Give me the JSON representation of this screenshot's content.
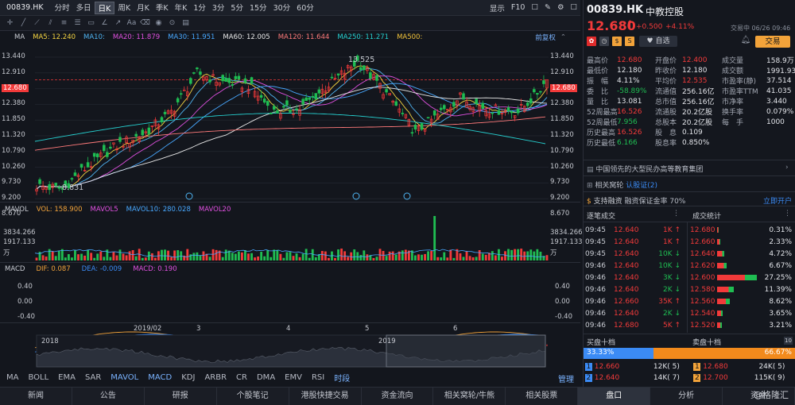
{
  "toolbar": {
    "symbol": "00839.HK",
    "periods": [
      "分时",
      "多日",
      "日K",
      "周K",
      "月K",
      "季K",
      "年K",
      "1分",
      "3分",
      "5分",
      "15分",
      "30分",
      "60分"
    ],
    "active_period": "日K",
    "display": "显示",
    "f10": "F10"
  },
  "ma_legend": {
    "ma": "MA",
    "items": [
      {
        "label": "MA5: 12.240",
        "color": "#f5d541"
      },
      {
        "label": "MA10:",
        "color": "#4fb4f2"
      },
      {
        "label": "MA20: 11.879",
        "color": "#e050e0"
      },
      {
        "label": "MA30: 11.951",
        "color": "#48a8ff"
      },
      {
        "label": "MA60: 12.005",
        "color": "#e8e8e8"
      },
      {
        "label": "MA120: 11.644",
        "color": "#ff7a7a"
      },
      {
        "label": "MA250: 11.271",
        "color": "#26d0d0"
      },
      {
        "label": "MA500:",
        "color": "#f0c23a"
      }
    ],
    "adjust": "前复权"
  },
  "price_axis": {
    "left": [
      "13.440",
      "12.910",
      "12.680",
      "12.380",
      "11.850",
      "11.320",
      "10.790",
      "10.260",
      "9.730",
      "9.200",
      "8.670"
    ],
    "right": [
      "13.440",
      "12.910",
      "12.680",
      "12.380",
      "11.850",
      "11.320",
      "10.790",
      "10.260",
      "9.730",
      "9.200",
      "8.670"
    ],
    "high_label": "13.525",
    "low_label": "8.831"
  },
  "volume": {
    "label": "MAVOL",
    "vol": "VOL: 158.900",
    "mavol5": "MAVOL5",
    "mavol10": "MAVOL10: 280.028",
    "mavol20": "MAVOL20",
    "axis": [
      "3834.266",
      "1917.133",
      "万"
    ],
    "axis_right": [
      "3834.266",
      "1917.133",
      "万"
    ]
  },
  "macd": {
    "label": "MACD",
    "dif": "DIF: 0.087",
    "dea": "DEA: -0.009",
    "macd": "MACD: 0.190",
    "axis": [
      "0.40",
      "0.00",
      "-0.40"
    ],
    "axis_right": [
      "0.40",
      "0.00",
      "-0.40"
    ]
  },
  "time_axis": [
    "2019/02",
    "3",
    "4",
    "5",
    "6"
  ],
  "overview_labels": [
    "2018",
    "2019"
  ],
  "indicators": [
    "MA",
    "BOLL",
    "EMA",
    "SAR",
    "MAVOL",
    "MACD",
    "KDJ",
    "ARBR",
    "CR",
    "DMA",
    "EMV",
    "RSI",
    "时段"
  ],
  "indicators_active": [
    "MAVOL",
    "MACD",
    "时段"
  ],
  "manage": "管理",
  "bottom_nav": [
    "新闻",
    "公告",
    "研报",
    "个股笔记",
    "港股快捷交易",
    "资金流向",
    "相关窝轮/牛熊",
    "相关股票",
    "盘口",
    "分析",
    "资金"
  ],
  "bottom_active": "盘口",
  "watermark": "@格隆汇",
  "quote": {
    "code": "00839.HK",
    "name": "中教控股",
    "price": "12.680",
    "arrow": "↑",
    "change": "+0.500",
    "pct": "+4.11%",
    "trade_time": "交易中 06/26 09:46",
    "watch": "自选",
    "trade": "交易",
    "stats": [
      [
        "最高价",
        "12.680",
        "开盘价",
        "12.400",
        "成交量",
        "158.9万"
      ],
      [
        "最低价",
        "12.180",
        "昨收价",
        "12.180",
        "成交额",
        "1991.93万"
      ],
      [
        "振　幅",
        "4.11%",
        "平均价",
        "12.535",
        "市盈率(静)",
        "37.514"
      ],
      [
        "委　比",
        "-58.89%",
        "流通值",
        "256.16亿",
        "市盈率TTM",
        "41.035"
      ],
      [
        "量　比",
        "13.081",
        "总市值",
        "256.16亿",
        "市净率",
        "3.440"
      ],
      [
        "52周最高",
        "16.526",
        "流通股",
        "20.2亿股",
        "换手率",
        "0.079%"
      ],
      [
        "52周最低",
        "7.956",
        "总股本",
        "20.2亿股",
        "每　手",
        "1000"
      ],
      [
        "历史最高",
        "16.526",
        "股　息",
        "0.109",
        "",
        ""
      ],
      [
        "历史最低",
        "6.166",
        "股息率",
        "0.850%",
        "",
        ""
      ]
    ],
    "desc": "中国领先的大型民办高等教育集团",
    "warrants": "相关窝轮",
    "certs": "认股证(2)",
    "margin": "支持融资",
    "margin_rate": "融资保证金率 70%",
    "open_account": "立即开户"
  },
  "ticks": {
    "title": "逐笔成交",
    "rows": [
      [
        "09:45",
        "12.640",
        "1K",
        "up"
      ],
      [
        "09:45",
        "12.640",
        "1K",
        "up"
      ],
      [
        "09:45",
        "12.640",
        "10K",
        "down"
      ],
      [
        "09:46",
        "12.640",
        "10K",
        "down"
      ],
      [
        "09:46",
        "12.640",
        "3K",
        "down"
      ],
      [
        "09:46",
        "12.640",
        "2K",
        "down"
      ],
      [
        "09:46",
        "12.660",
        "35K",
        "up"
      ],
      [
        "09:46",
        "12.640",
        "2K",
        "down"
      ],
      [
        "09:46",
        "12.680",
        "5K",
        "up"
      ]
    ]
  },
  "dist": {
    "title": "成交统计",
    "rows": [
      [
        "12.680",
        "0.31%",
        0.31
      ],
      [
        "12.660",
        "2.33%",
        2.33
      ],
      [
        "12.640",
        "4.72%",
        4.72
      ],
      [
        "12.620",
        "6.67%",
        6.67
      ],
      [
        "12.600",
        "27.25%",
        27.25
      ],
      [
        "12.580",
        "11.39%",
        11.39
      ],
      [
        "12.560",
        "8.62%",
        8.62
      ],
      [
        "12.540",
        "3.65%",
        3.65
      ],
      [
        "12.520",
        "3.21%",
        3.21
      ]
    ]
  },
  "book": {
    "bid_title": "买盘十档",
    "ask_title": "卖盘十档",
    "ten": "10",
    "bid_pct": "33.33%",
    "ask_pct": "66.67%",
    "bid_ratio": 0.3333,
    "bids": [
      [
        "1",
        "12.660",
        "12K",
        "( 5)"
      ],
      [
        "2",
        "12.640",
        "14K",
        "( 7)"
      ]
    ],
    "asks": [
      [
        "1",
        "12.680",
        "24K",
        "( 5)"
      ],
      [
        "2",
        "12.700",
        "115K",
        "( 9)"
      ]
    ]
  },
  "colors": {
    "up": "#f23a3a",
    "down": "#1fbd52",
    "bg": "#13161d",
    "accent": "#3b8bf5"
  }
}
